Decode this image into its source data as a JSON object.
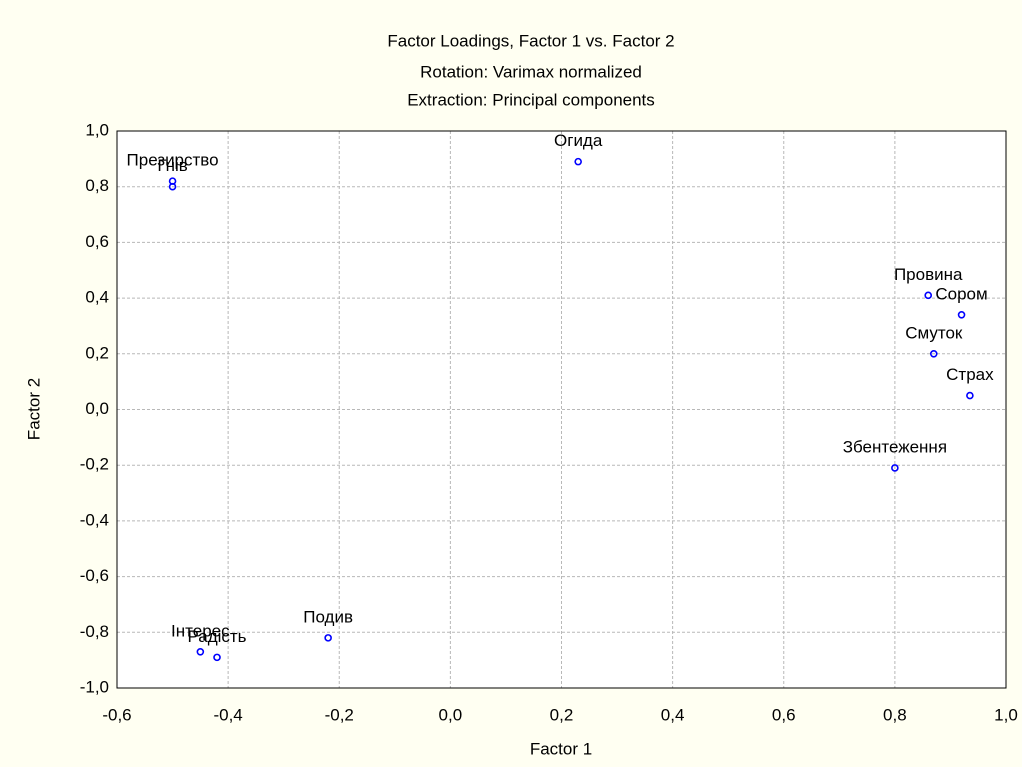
{
  "chart_data": {
    "type": "scatter",
    "title": "Factor Loadings, Factor 1 vs. Factor 2",
    "subtitle": [
      "Rotation: Varimax normalized",
      "Extraction: Principal components"
    ],
    "x_label": "Factor 1",
    "y_label": "Factor 2",
    "labels": [
      "Огида",
      "Презирство",
      "Гнів",
      "Провина",
      "Сором",
      "Смуток",
      "Страх",
      "Збентеження",
      "Подив",
      "Інтерес",
      "Радість"
    ],
    "x": [
      0.23,
      -0.5,
      -0.5,
      0.86,
      0.92,
      0.87,
      0.935,
      0.8,
      -0.22,
      -0.45,
      -0.42
    ],
    "values": [
      0.89,
      0.82,
      0.8,
      0.41,
      0.34,
      0.2,
      0.05,
      -0.21,
      -0.82,
      -0.87,
      -0.89
    ],
    "color": "#0000ff",
    "xlim": [
      -0.6,
      1.0
    ],
    "xticks": [
      {
        "value": -0.6,
        "label": "-0,6"
      },
      {
        "value": -0.4,
        "label": "-0,4"
      },
      {
        "value": -0.2,
        "label": "-0,2"
      },
      {
        "value": 0,
        "label": "0,0"
      },
      {
        "value": 0.2,
        "label": "0,2"
      },
      {
        "value": 0.4,
        "label": "0,4"
      },
      {
        "value": 0.6,
        "label": "0,6"
      },
      {
        "value": 0.8,
        "label": "0,8"
      },
      {
        "value": 1.0,
        "label": "1,0"
      }
    ],
    "ylim": [
      -1.0,
      1.0
    ],
    "yticks": [
      {
        "value": -1.0,
        "label": "-1,0"
      },
      {
        "value": -0.8,
        "label": "-0,8"
      },
      {
        "value": -0.6,
        "label": "-0,6"
      },
      {
        "value": -0.4,
        "label": "-0,4"
      },
      {
        "value": -0.2,
        "label": "-0,2"
      },
      {
        "value": 0,
        "label": "0,0"
      },
      {
        "value": 0.2,
        "label": "0,2"
      },
      {
        "value": 0.4,
        "label": "0,4"
      },
      {
        "value": 0.6,
        "label": "0,6"
      },
      {
        "value": 0.8,
        "label": "0,8"
      },
      {
        "value": 1.0,
        "label": "1,0"
      }
    ],
    "grid": true
  }
}
